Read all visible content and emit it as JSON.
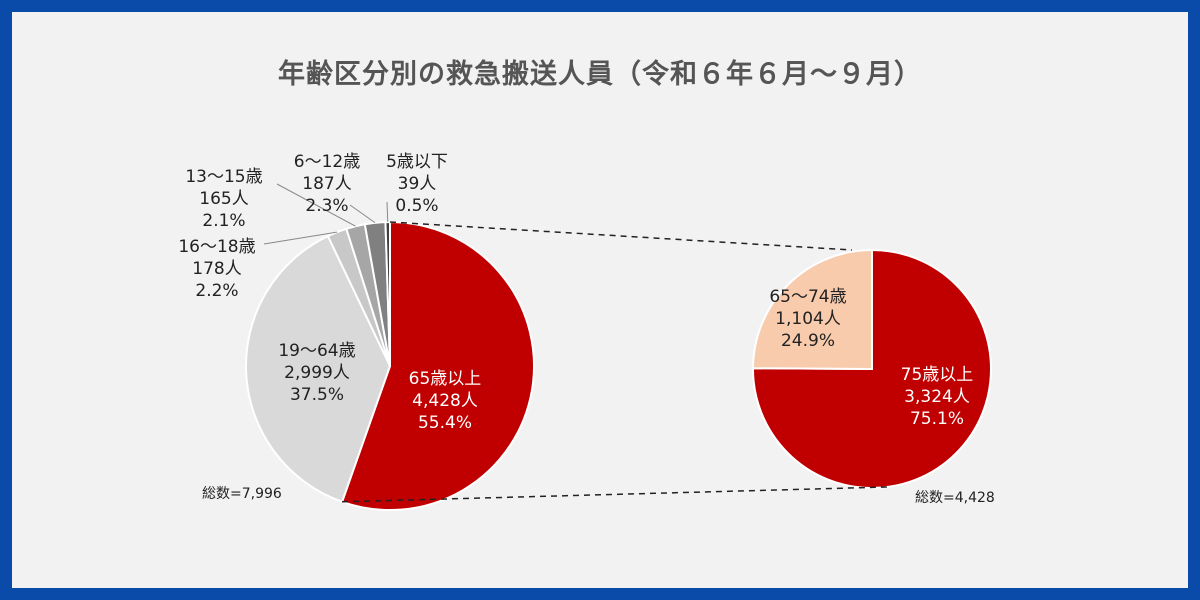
{
  "chart_data": [
    {
      "type": "pie",
      "title": "年齢区分別の救急搬送人員（令和６年６月～９月）",
      "total_label": "総数=7,996",
      "slices": [
        {
          "name": "65歳以上",
          "count": "4,428人",
          "percent": "55.4%",
          "value": 55.4,
          "color": "#c00000"
        },
        {
          "name": "19～64歳",
          "count": "2,999人",
          "percent": "37.5%",
          "value": 37.5,
          "color": "#d9d9d9"
        },
        {
          "name": "16～18歳",
          "count": "178人",
          "percent": "2.2%",
          "value": 2.2,
          "color": "#c8c8c8"
        },
        {
          "name": "13～15歳",
          "count": "165人",
          "percent": "2.1%",
          "value": 2.1,
          "color": "#a6a6a6"
        },
        {
          "name": "6～12歳",
          "count": "187人",
          "percent": "2.3%",
          "value": 2.3,
          "color": "#808080"
        },
        {
          "name": "5歳以下",
          "count": "39人",
          "percent": "0.5%",
          "value": 0.5,
          "color": "#404040"
        }
      ]
    },
    {
      "type": "pie",
      "total_label": "総数=4,428",
      "slices": [
        {
          "name": "75歳以上",
          "count": "3,324人",
          "percent": "75.1%",
          "value": 75.1,
          "color": "#c00000"
        },
        {
          "name": "65～74歳",
          "count": "1,104人",
          "percent": "24.9%",
          "value": 24.9,
          "color": "#f8cbad"
        }
      ]
    }
  ]
}
